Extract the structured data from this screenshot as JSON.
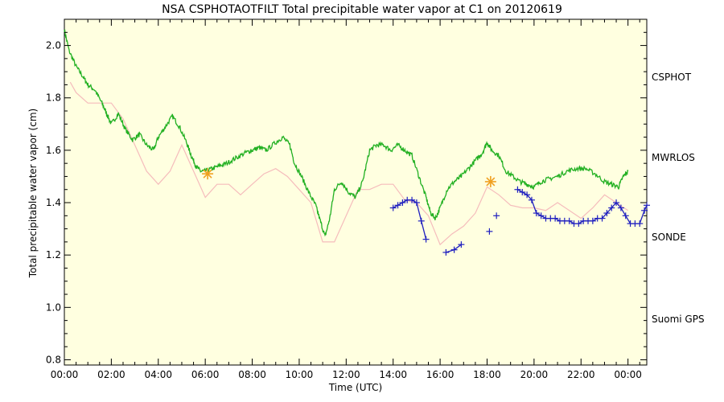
{
  "colors": {
    "background": "#ffffe0",
    "CSPHOT": "#1f1fbf",
    "MWRLOS": "#22b022",
    "SONDE": "#f0a020",
    "Suomi GPS": "#f5bcbc"
  },
  "chart_data": {
    "type": "line",
    "title": "NSA CSPHOTAOTFILT Total precipitable water vapor at C1 on 20120619",
    "xlabel": "Time (UTC)",
    "ylabel": "Total precipitable water vapor (cm)",
    "x_units": "hours UTC",
    "xlim": [
      0,
      24.8
    ],
    "ylim": [
      0.78,
      2.1
    ],
    "x_tick_values": [
      0,
      2,
      4,
      6,
      8,
      10,
      12,
      14,
      16,
      18,
      20,
      22,
      24
    ],
    "x_tick_labels": [
      "00:00",
      "02:00",
      "04:00",
      "06:00",
      "08:00",
      "10:00",
      "12:00",
      "14:00",
      "16:00",
      "18:00",
      "20:00",
      "22:00",
      "00:00"
    ],
    "y_tick_values": [
      0.8,
      1.0,
      1.2,
      1.4,
      1.6,
      1.8,
      2.0
    ],
    "y_tick_labels": [
      "0.8",
      "1.0",
      "1.2",
      "1.4",
      "1.6",
      "1.8",
      "2.0"
    ],
    "grid": false,
    "legend_position": "right",
    "legend": [
      "CSPHOT",
      "MWRLOS",
      "SONDE",
      "Suomi GPS"
    ],
    "series": [
      {
        "name": "MWRLOS",
        "style": "line",
        "x": [
          0,
          0.2,
          0.5,
          0.8,
          1.0,
          1.3,
          1.6,
          1.8,
          2.0,
          2.3,
          2.6,
          2.9,
          3.2,
          3.5,
          3.8,
          4.0,
          4.3,
          4.6,
          4.9,
          5.2,
          5.4,
          5.6,
          5.8,
          6.0,
          6.3,
          6.6,
          6.9,
          7.3,
          7.7,
          8.0,
          8.3,
          8.6,
          9.0,
          9.3,
          9.6,
          9.8,
          10.1,
          10.4,
          10.7,
          10.9,
          11.1,
          11.3,
          11.5,
          11.8,
          12.1,
          12.4,
          12.7,
          13.0,
          13.3,
          13.6,
          13.9,
          14.2,
          14.5,
          14.8,
          15.1,
          15.4,
          15.6,
          15.8,
          16.0,
          16.3,
          16.6,
          16.9,
          17.2,
          17.5,
          17.8,
          18.0,
          18.2,
          18.5,
          18.8,
          19.1,
          19.4,
          19.7,
          20.0,
          20.3,
          20.6,
          21.0,
          21.4,
          21.8,
          22.2,
          22.6,
          23.0,
          23.3,
          23.6,
          23.8,
          24.0
        ],
        "y": [
          2.06,
          1.98,
          1.92,
          1.88,
          1.85,
          1.83,
          1.78,
          1.74,
          1.7,
          1.74,
          1.68,
          1.64,
          1.66,
          1.62,
          1.6,
          1.65,
          1.69,
          1.73,
          1.69,
          1.63,
          1.58,
          1.54,
          1.52,
          1.52,
          1.53,
          1.54,
          1.55,
          1.57,
          1.59,
          1.6,
          1.61,
          1.6,
          1.63,
          1.65,
          1.62,
          1.55,
          1.5,
          1.44,
          1.39,
          1.33,
          1.27,
          1.34,
          1.45,
          1.48,
          1.44,
          1.42,
          1.48,
          1.6,
          1.62,
          1.62,
          1.6,
          1.62,
          1.6,
          1.58,
          1.5,
          1.42,
          1.36,
          1.34,
          1.38,
          1.45,
          1.48,
          1.5,
          1.53,
          1.56,
          1.59,
          1.63,
          1.6,
          1.58,
          1.52,
          1.5,
          1.48,
          1.47,
          1.46,
          1.48,
          1.49,
          1.5,
          1.52,
          1.53,
          1.53,
          1.51,
          1.48,
          1.47,
          1.46,
          1.5,
          1.52
        ]
      },
      {
        "name": "Suomi GPS",
        "style": "line",
        "x": [
          0.25,
          0.5,
          1.0,
          1.5,
          2.0,
          2.5,
          3.0,
          3.5,
          4.0,
          4.5,
          5.0,
          5.5,
          6.0,
          6.5,
          7.0,
          7.5,
          8.0,
          8.5,
          9.0,
          9.5,
          10.0,
          10.5,
          11.0,
          11.5,
          12.0,
          12.5,
          13.0,
          13.5,
          14.0,
          14.5,
          15.0,
          15.5,
          16.0,
          16.5,
          17.0,
          17.5,
          18.0,
          18.5,
          19.0,
          19.5,
          20.0,
          20.5,
          21.0,
          21.5,
          22.0,
          22.5,
          23.0,
          23.5,
          24.0
        ],
        "y": [
          1.86,
          1.82,
          1.78,
          1.78,
          1.78,
          1.72,
          1.62,
          1.52,
          1.47,
          1.52,
          1.62,
          1.52,
          1.42,
          1.47,
          1.47,
          1.43,
          1.47,
          1.51,
          1.53,
          1.5,
          1.45,
          1.4,
          1.25,
          1.25,
          1.35,
          1.45,
          1.45,
          1.47,
          1.47,
          1.41,
          1.4,
          1.35,
          1.24,
          1.28,
          1.31,
          1.36,
          1.46,
          1.43,
          1.39,
          1.38,
          1.38,
          1.37,
          1.4,
          1.37,
          1.34,
          1.38,
          1.43,
          1.4,
          1.37
        ]
      },
      {
        "name": "CSPHOT",
        "style": "line+cross",
        "segments": [
          {
            "x": [
              14.0,
              14.2,
              14.4,
              14.6,
              14.8,
              15.0,
              15.2,
              15.4
            ],
            "y": [
              1.38,
              1.39,
              1.4,
              1.41,
              1.41,
              1.4,
              1.33,
              1.26
            ]
          },
          {
            "x": [
              16.25,
              16.6,
              16.9
            ],
            "y": [
              1.21,
              1.22,
              1.24
            ]
          },
          {
            "x": [
              18.1
            ],
            "y": [
              1.29
            ]
          },
          {
            "x": [
              18.4
            ],
            "y": [
              1.35
            ]
          },
          {
            "x": [
              19.3,
              19.5,
              19.7,
              19.9,
              20.1,
              20.3,
              20.5,
              20.7,
              20.9,
              21.1,
              21.3,
              21.5,
              21.7,
              21.9,
              22.1,
              22.3,
              22.5,
              22.7,
              22.9,
              23.1,
              23.3,
              23.5,
              23.7,
              23.9,
              24.1,
              24.3,
              24.5,
              24.7,
              24.8
            ],
            "y": [
              1.45,
              1.44,
              1.43,
              1.41,
              1.36,
              1.35,
              1.34,
              1.34,
              1.34,
              1.33,
              1.33,
              1.33,
              1.32,
              1.32,
              1.33,
              1.33,
              1.33,
              1.34,
              1.34,
              1.36,
              1.38,
              1.4,
              1.38,
              1.35,
              1.32,
              1.32,
              1.32,
              1.37,
              1.39
            ]
          }
        ]
      },
      {
        "name": "SONDE",
        "style": "asterisk",
        "x": [
          6.1,
          18.15
        ],
        "y": [
          1.51,
          1.48
        ]
      }
    ]
  }
}
